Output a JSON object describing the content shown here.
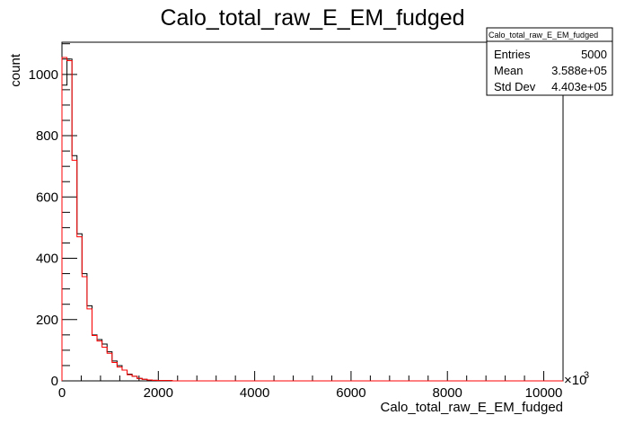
{
  "chart_data": {
    "type": "histogram",
    "title": "Calo_total_raw_E_EM_fudged",
    "xlabel": "Calo_total_raw_E_EM_fudged",
    "ylabel": "count",
    "x_multiplier": "×10",
    "x_multiplier_exp": "3",
    "xlim": [
      0,
      10400
    ],
    "ylim": [
      0,
      1105
    ],
    "grid": false,
    "x_ticks": [
      0,
      2000,
      4000,
      6000,
      8000,
      10000
    ],
    "x_tick_labels": [
      "0",
      "2000",
      "4000",
      "6000",
      "8000",
      "10000"
    ],
    "y_ticks": [
      0,
      200,
      400,
      600,
      800,
      1000
    ],
    "y_tick_labels": [
      "0",
      "200",
      "400",
      "600",
      "800",
      "1000"
    ],
    "bin_width": 104,
    "series": [
      {
        "color": "#000000",
        "values": [
          965,
          1050,
          735,
          480,
          350,
          245,
          150,
          135,
          120,
          95,
          65,
          50,
          35,
          22,
          15,
          8,
          5,
          3,
          2,
          1,
          1,
          1,
          0,
          0,
          0
        ]
      },
      {
        "color": "#ff0000",
        "values": [
          1055,
          1045,
          720,
          470,
          340,
          235,
          148,
          130,
          110,
          90,
          60,
          45,
          35,
          20,
          15,
          8,
          5,
          3,
          2,
          1,
          1,
          1,
          0,
          0,
          0
        ]
      }
    ],
    "stats_box": {
      "name": "Calo_total_raw_E_EM_fudged",
      "rows": [
        {
          "label": "Entries",
          "value": "5000"
        },
        {
          "label": "Mean",
          "value": "3.588e+05"
        },
        {
          "label": "Std Dev",
          "value": "4.403e+05"
        }
      ]
    }
  }
}
